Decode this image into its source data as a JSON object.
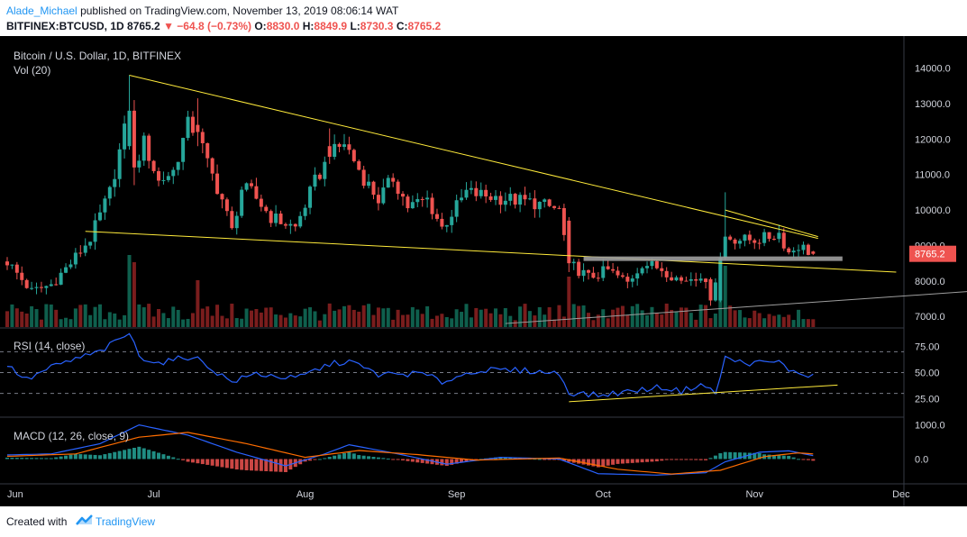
{
  "header": {
    "author": "Alade_Michael",
    "published": "published on TradingView.com, November 13, 2019 08:06:14 WAT",
    "symbol": "BITFINEX:BTCUSD, 1D",
    "last": "8765.2",
    "change": "▼ −64.8 (−0.73%)",
    "o_label": "O:",
    "o_value": "8830.0",
    "h_label": "H:",
    "h_value": "8849.9",
    "l_label": "L:",
    "l_value": "8730.3",
    "c_label": "C:",
    "c_value": "8765.2"
  },
  "footer": {
    "created_with": "Created with",
    "brand": "TradingView"
  },
  "colors": {
    "background": "#000000",
    "up": "#26a69a",
    "down": "#ef5350",
    "vol_up": "#0f5f4d",
    "vol_down": "#7a1d1d",
    "trendline": "#ffeb3b",
    "support": "#9e9e9e",
    "rsi": "#2962ff",
    "macd": "#2962ff",
    "signal": "#ff6d00",
    "axis_text": "#d1d4dc",
    "price_tag": "#ef5350"
  },
  "chart_data": [
    {
      "type": "candlestick",
      "title": "Bitcoin / U.S. Dollar, 1D, BITFINEX",
      "legend": [
        "Vol (20)"
      ],
      "ylim": [
        6700,
        14600
      ],
      "y_ticks": [
        "14000.0",
        "13000.0",
        "12000.0",
        "11000.0",
        "10000.0",
        "9000.0",
        "8000.0",
        "7000.0"
      ],
      "y_tick_values": [
        14000,
        13000,
        12000,
        11000,
        10000,
        9000,
        8000,
        7000
      ],
      "x_ticks": [
        "Jun",
        "Jul",
        "Aug",
        "Sep",
        "Oct",
        "Nov",
        "Dec"
      ],
      "last_price": "8765.2",
      "anchors": [
        [
          "2019-06-01",
          8550
        ],
        [
          "2019-06-06",
          7700
        ],
        [
          "2019-06-10",
          7900
        ],
        [
          "2019-06-14",
          8500
        ],
        [
          "2019-06-18",
          9200
        ],
        [
          "2019-06-22",
          10500
        ],
        [
          "2019-06-26",
          12800
        ],
        [
          "2019-06-27",
          11200
        ],
        [
          "2019-06-29",
          11900
        ],
        [
          "2019-07-02",
          10800
        ],
        [
          "2019-07-05",
          11100
        ],
        [
          "2019-07-08",
          12400
        ],
        [
          "2019-07-10",
          12200
        ],
        [
          "2019-07-12",
          11300
        ],
        [
          "2019-07-15",
          10300
        ],
        [
          "2019-07-17",
          9400
        ],
        [
          "2019-07-19",
          10600
        ],
        [
          "2019-07-21",
          10500
        ],
        [
          "2019-07-25",
          9800
        ],
        [
          "2019-07-30",
          9500
        ],
        [
          "2019-08-03",
          10800
        ],
        [
          "2019-08-06",
          11500
        ],
        [
          "2019-08-09",
          11900
        ],
        [
          "2019-08-13",
          10900
        ],
        [
          "2019-08-16",
          10300
        ],
        [
          "2019-08-19",
          10900
        ],
        [
          "2019-08-22",
          10100
        ],
        [
          "2019-08-26",
          10300
        ],
        [
          "2019-08-29",
          9500
        ],
        [
          "2019-09-03",
          10500
        ],
        [
          "2019-09-07",
          10400
        ],
        [
          "2019-09-12",
          10300
        ],
        [
          "2019-09-17",
          10200
        ],
        [
          "2019-09-22",
          10000
        ],
        [
          "2019-09-24",
          8500
        ],
        [
          "2019-09-28",
          8100
        ],
        [
          "2019-10-02",
          8300
        ],
        [
          "2019-10-06",
          7950
        ],
        [
          "2019-10-09",
          8500
        ],
        [
          "2019-10-13",
          8350
        ],
        [
          "2019-10-17",
          8000
        ],
        [
          "2019-10-21",
          8200
        ],
        [
          "2019-10-23",
          7450
        ],
        [
          "2019-10-25",
          8650
        ],
        [
          "2019-10-26",
          9250
        ],
        [
          "2019-10-30",
          9150
        ],
        [
          "2019-11-03",
          9200
        ],
        [
          "2019-11-06",
          9350
        ],
        [
          "2019-11-08",
          8800
        ],
        [
          "2019-11-10",
          9000
        ],
        [
          "2019-11-13",
          8765
        ]
      ],
      "fixed_candles": [
        {
          "date": "2019-06-26",
          "open": 11800,
          "high": 13800,
          "low": 11700,
          "close": 12800
        },
        {
          "date": "2019-06-27",
          "open": 12800,
          "high": 13100,
          "low": 10700,
          "close": 11200
        },
        {
          "date": "2019-07-10",
          "open": 12400,
          "high": 13150,
          "low": 11800,
          "close": 12200
        },
        {
          "date": "2019-08-06",
          "open": 11800,
          "high": 12300,
          "low": 11300,
          "close": 11500
        },
        {
          "date": "2019-09-24",
          "open": 9700,
          "high": 9800,
          "low": 8250,
          "close": 8500
        },
        {
          "date": "2019-10-23",
          "open": 8050,
          "high": 8100,
          "low": 7300,
          "close": 7450
        },
        {
          "date": "2019-10-25",
          "open": 7450,
          "high": 8800,
          "low": 7400,
          "close": 8650
        },
        {
          "date": "2019-10-26",
          "open": 8650,
          "high": 10500,
          "low": 8600,
          "close": 9250
        },
        {
          "date": "2019-11-13",
          "open": 8830,
          "high": 8849.9,
          "low": 8730.3,
          "close": 8765.2
        }
      ],
      "volume_spikes": [
        [
          "2019-06-26",
          1.0
        ],
        [
          "2019-06-27",
          0.9
        ],
        [
          "2019-07-10",
          0.65
        ],
        [
          "2019-09-24",
          0.7
        ],
        [
          "2019-10-25",
          0.9
        ],
        [
          "2019-10-26",
          0.85
        ]
      ],
      "trendlines": [
        {
          "name": "channel-upper",
          "from": [
            "2019-06-26",
            13800
          ],
          "to": [
            "2019-11-14",
            9200
          ]
        },
        {
          "name": "channel-lower",
          "from": [
            "2019-06-17",
            9400
          ],
          "to": [
            "2019-11-30",
            8250
          ]
        },
        {
          "name": "triangle-top",
          "from": [
            "2019-10-26",
            10000
          ],
          "to": [
            "2019-11-14",
            9250
          ]
        },
        {
          "name": "long-term-support",
          "from": [
            "2019-09-11",
            6800
          ],
          "to": [
            "2020-01-15",
            8000
          ]
        }
      ],
      "support_zone": {
        "from": "2019-09-27",
        "to": "2019-11-19",
        "price": 8640
      }
    },
    {
      "type": "line",
      "title": "RSI (14, close)",
      "ylim": [
        8,
        92
      ],
      "y_ticks": [
        "75.00",
        "50.00",
        "25.00"
      ],
      "y_tick_values": [
        75,
        50,
        25
      ],
      "guides": [
        70,
        50,
        30
      ],
      "series": [
        {
          "name": "RSI",
          "anchors": [
            [
              "2019-06-01",
              57
            ],
            [
              "2019-06-05",
              43
            ],
            [
              "2019-06-10",
              55
            ],
            [
              "2019-06-15",
              63
            ],
            [
              "2019-06-20",
              70
            ],
            [
              "2019-06-26",
              88
            ],
            [
              "2019-06-28",
              66
            ],
            [
              "2019-07-02",
              59
            ],
            [
              "2019-07-09",
              66
            ],
            [
              "2019-07-14",
              50
            ],
            [
              "2019-07-17",
              41
            ],
            [
              "2019-07-22",
              49
            ],
            [
              "2019-07-30",
              44
            ],
            [
              "2019-08-06",
              58
            ],
            [
              "2019-08-10",
              61
            ],
            [
              "2019-08-16",
              48
            ],
            [
              "2019-08-25",
              49
            ],
            [
              "2019-08-29",
              41
            ],
            [
              "2019-09-05",
              52
            ],
            [
              "2019-09-15",
              52
            ],
            [
              "2019-09-22",
              49
            ],
            [
              "2019-09-24",
              31
            ],
            [
              "2019-09-30",
              28
            ],
            [
              "2019-10-08",
              33
            ],
            [
              "2019-10-13",
              36
            ],
            [
              "2019-10-17",
              32
            ],
            [
              "2019-10-21",
              39
            ],
            [
              "2019-10-24",
              30
            ],
            [
              "2019-10-26",
              64
            ],
            [
              "2019-10-30",
              59
            ],
            [
              "2019-11-06",
              60
            ],
            [
              "2019-11-09",
              50
            ],
            [
              "2019-11-13",
              47
            ]
          ]
        }
      ],
      "trendline": {
        "from": [
          "2019-09-24",
          22
        ],
        "to": [
          "2019-11-18",
          38
        ]
      }
    },
    {
      "type": "histogram",
      "title": "MACD (12, 26, close, 9)",
      "ylim": [
        -700,
        1200
      ],
      "y_ticks": [
        "1000.0",
        "0.0"
      ],
      "y_tick_values": [
        1000,
        0
      ],
      "series": [
        {
          "name": "MACD",
          "anchors": [
            [
              "2019-06-01",
              120
            ],
            [
              "2019-06-10",
              150
            ],
            [
              "2019-06-20",
              450
            ],
            [
              "2019-06-28",
              1000
            ],
            [
              "2019-07-08",
              700
            ],
            [
              "2019-07-18",
              200
            ],
            [
              "2019-07-28",
              -200
            ],
            [
              "2019-08-05",
              150
            ],
            [
              "2019-08-10",
              420
            ],
            [
              "2019-08-20",
              150
            ],
            [
              "2019-08-30",
              -150
            ],
            [
              "2019-09-10",
              50
            ],
            [
              "2019-09-22",
              0
            ],
            [
              "2019-09-30",
              -430
            ],
            [
              "2019-10-12",
              -470
            ],
            [
              "2019-10-22",
              -400
            ],
            [
              "2019-10-26",
              -80
            ],
            [
              "2019-11-02",
              200
            ],
            [
              "2019-11-08",
              240
            ],
            [
              "2019-11-13",
              100
            ]
          ]
        },
        {
          "name": "Signal",
          "anchors": [
            [
              "2019-06-01",
              80
            ],
            [
              "2019-06-15",
              150
            ],
            [
              "2019-06-28",
              640
            ],
            [
              "2019-07-08",
              780
            ],
            [
              "2019-07-20",
              450
            ],
            [
              "2019-08-01",
              50
            ],
            [
              "2019-08-12",
              250
            ],
            [
              "2019-08-24",
              130
            ],
            [
              "2019-09-05",
              -30
            ],
            [
              "2019-09-22",
              30
            ],
            [
              "2019-10-04",
              -300
            ],
            [
              "2019-10-15",
              -440
            ],
            [
              "2019-10-25",
              -330
            ],
            [
              "2019-11-03",
              70
            ],
            [
              "2019-11-10",
              180
            ],
            [
              "2019-11-13",
              150
            ]
          ]
        }
      ]
    }
  ]
}
